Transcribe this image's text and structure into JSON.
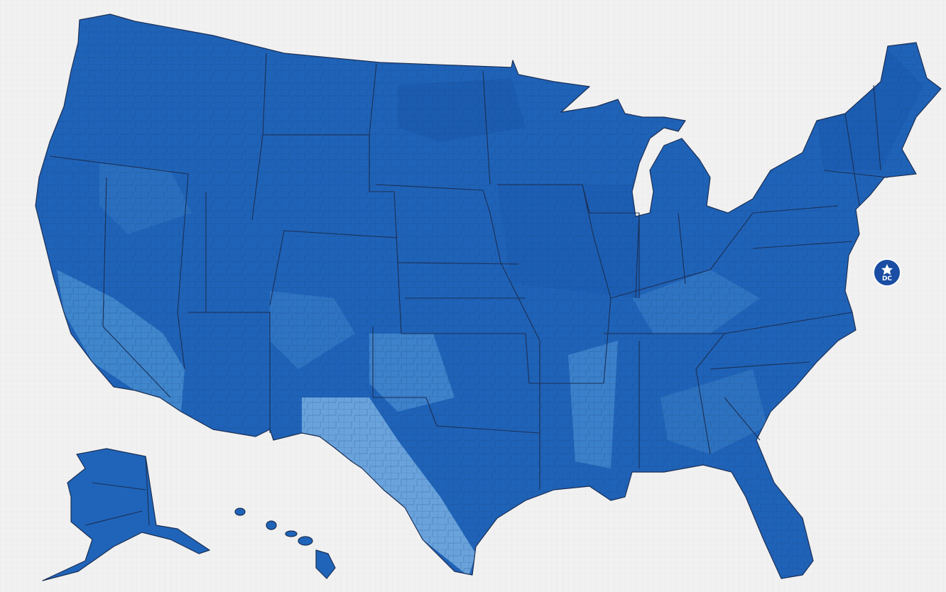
{
  "map": {
    "marker": {
      "label": "DC"
    }
  }
}
